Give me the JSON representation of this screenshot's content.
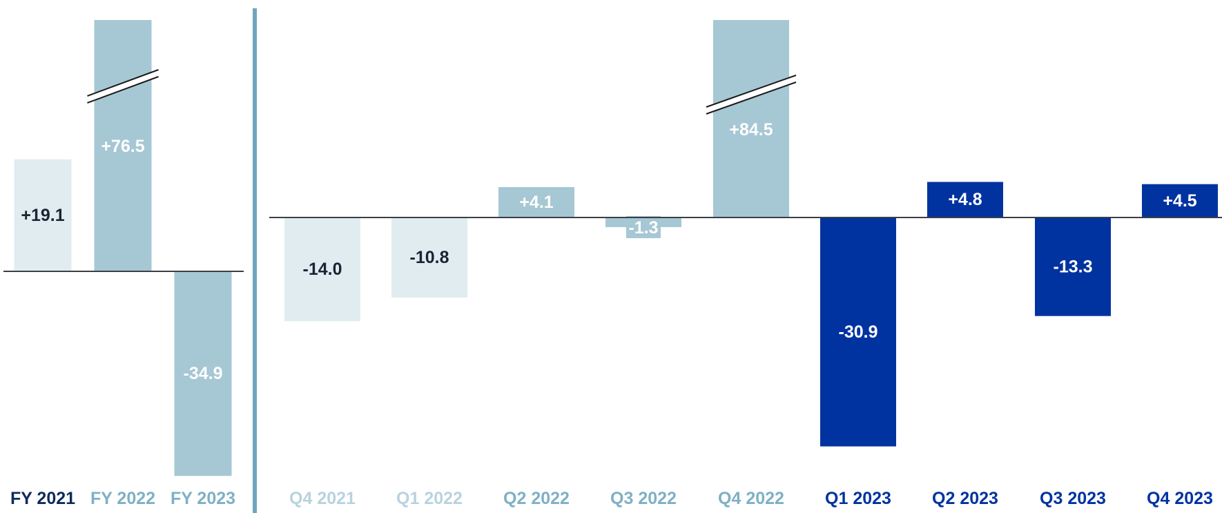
{
  "chart_data": [
    {
      "type": "bar",
      "categories": [
        "FY 2021",
        "FY 2022",
        "FY 2023"
      ],
      "values": [
        19.1,
        76.5,
        -34.9
      ],
      "data_labels": [
        "+19.1",
        "+76.5",
        "-34.9"
      ],
      "axis_break": [
        false,
        true,
        false
      ],
      "title": "",
      "xlabel": "",
      "ylabel": "",
      "grid": false,
      "bar_colors": [
        "#e1ecf1",
        "#a6c7d4",
        "#a6c7d4"
      ],
      "label_colors": [
        "#1a2433",
        "#ffffff",
        "#ffffff"
      ],
      "category_colors": [
        "#0f2a5c",
        "#7fb0c4",
        "#7fb0c4"
      ]
    },
    {
      "type": "bar",
      "categories": [
        "Q4 2021",
        "Q1 2022",
        "Q2 2022",
        "Q3 2022",
        "Q4 2022",
        "Q1 2023",
        "Q2 2023",
        "Q3 2023",
        "Q4 2023"
      ],
      "values": [
        -14.0,
        -10.8,
        4.1,
        -1.3,
        84.5,
        -30.9,
        4.8,
        -13.3,
        4.5
      ],
      "data_labels": [
        "-14.0",
        "-10.8",
        "+4.1",
        "-1.3",
        "+84.5",
        "-30.9",
        "+4.8",
        "-13.3",
        "+4.5"
      ],
      "axis_break": [
        false,
        false,
        false,
        false,
        true,
        false,
        false,
        false,
        false
      ],
      "title": "",
      "xlabel": "",
      "ylabel": "",
      "grid": false,
      "bar_colors": [
        "#e1ecf1",
        "#e1ecf1",
        "#a6c7d4",
        "#a6c7d4",
        "#a6c7d4",
        "#0033a0",
        "#0033a0",
        "#0033a0",
        "#0033a0"
      ],
      "label_colors": [
        "#1a2433",
        "#1a2433",
        "#ffffff",
        "#ffffff",
        "#ffffff",
        "#ffffff",
        "#ffffff",
        "#ffffff",
        "#ffffff"
      ],
      "category_colors": [
        "#b8d3de",
        "#b8d3de",
        "#7fb0c4",
        "#7fb0c4",
        "#7fb0c4",
        "#0033a0",
        "#0033a0",
        "#0033a0",
        "#0033a0"
      ]
    }
  ],
  "colors": {
    "divider": "#6fa6bd",
    "baseline": "#3a3f45",
    "break_mark": "#1a1a1a"
  }
}
